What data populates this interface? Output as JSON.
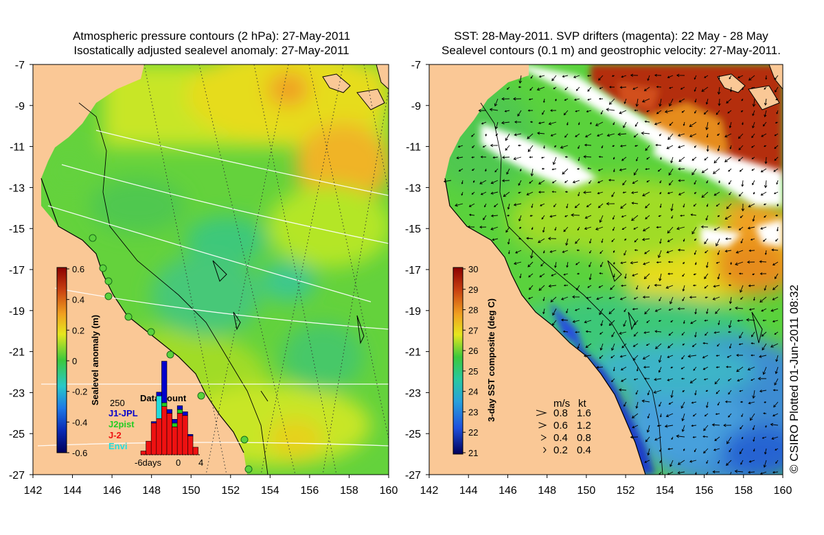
{
  "left_map": {
    "title_line1": "Atmospheric pressure contours (2 hPa): 27-May-2011",
    "title_line2": "Isostatically adjusted sealevel anomaly: 27-May-2011",
    "colorbar": {
      "label": "Sealevel anomaly (m)",
      "ticks": [
        "0.6",
        "0.4",
        "0.2",
        "0",
        "-0.2",
        "-0.4",
        "-0.6"
      ]
    },
    "data_count": {
      "title": "Data count",
      "max_label": "250",
      "legend": [
        {
          "name": "J1-JPL",
          "color": "#0000cc"
        },
        {
          "name": "J2pist",
          "color": "#22cc22"
        },
        {
          "name": "J-2",
          "color": "#ee1111"
        },
        {
          "name": "Envi",
          "color": "#22dddd"
        }
      ],
      "x_labels": [
        "-6days",
        "0",
        "4"
      ],
      "bars": [
        {
          "day": -6,
          "J-2": 0.05,
          "J2pist": 0,
          "J1-JPL": 0,
          "Envi": 0
        },
        {
          "day": -5,
          "J-2": 0.18,
          "J2pist": 0,
          "J1-JPL": 0,
          "Envi": 0
        },
        {
          "day": -4,
          "J-2": 0.42,
          "J2pist": 0,
          "J1-JPL": 0.02,
          "Envi": 0
        },
        {
          "day": -3,
          "J-2": 0.48,
          "J2pist": 0,
          "J1-JPL": 0.05,
          "Envi": 0.3
        },
        {
          "day": -2,
          "J-2": 0.64,
          "J2pist": 0.05,
          "J1-JPL": 0.55,
          "Envi": 0
        },
        {
          "day": -1,
          "J-2": 0.55,
          "J2pist": 0,
          "J1-JPL": 0.05,
          "Envi": 0
        },
        {
          "day": 0,
          "J-2": 0.37,
          "J2pist": 0.05,
          "J1-JPL": 0.05,
          "Envi": 0
        },
        {
          "day": 1,
          "J-2": 0.55,
          "J2pist": 0.05,
          "J1-JPL": 0.05,
          "Envi": 0
        },
        {
          "day": 2,
          "J-2": 0.52,
          "J2pist": 0,
          "J1-JPL": 0.05,
          "Envi": 0
        },
        {
          "day": 3,
          "J-2": 0.25,
          "J2pist": 0,
          "J1-JPL": 0.02,
          "Envi": 0
        },
        {
          "day": 4,
          "J-2": 0.1,
          "J2pist": 0,
          "J1-JPL": 0,
          "Envi": 0
        }
      ]
    }
  },
  "right_map": {
    "title_line1": "SST: 28-May-2011. SVP drifters (magenta): 22 May - 28 May",
    "title_line2": "Sealevel contours (0.1 m) and geostrophic velocity: 27-May-2011.",
    "colorbar": {
      "label": "3-day SST composite (deg C)",
      "ticks": [
        "30",
        "29",
        "28",
        "27",
        "26",
        "25",
        "24",
        "23",
        "22",
        "21"
      ]
    },
    "velocity_legend": {
      "header_ms": "m/s",
      "header_kt": "kt",
      "rows": [
        {
          "ms": "0.8",
          "kt": "1.6"
        },
        {
          "ms": "0.6",
          "kt": "1.2"
        },
        {
          "ms": "0.4",
          "kt": "0.8"
        },
        {
          "ms": "0.2",
          "kt": "0.4"
        }
      ]
    },
    "credit": "© CSIRO Plotted 01-Jun-2011 08:32"
  },
  "axes": {
    "lat_ticks": [
      "-7",
      "-9",
      "-11",
      "-13",
      "-15",
      "-17",
      "-19",
      "-21",
      "-23",
      "-25",
      "-27"
    ],
    "lon_ticks": [
      "142",
      "144",
      "146",
      "148",
      "150",
      "152",
      "154",
      "156",
      "158",
      "160"
    ]
  },
  "colors": {
    "land": "#fac896",
    "ocean_green": "#5ad23c",
    "ocean_yellow": "#c8e628",
    "warm_orange": "#f0a020",
    "deep_red": "#b42d0a",
    "cool_blue": "#3c8cd2",
    "cyan": "#3cdcb4"
  }
}
